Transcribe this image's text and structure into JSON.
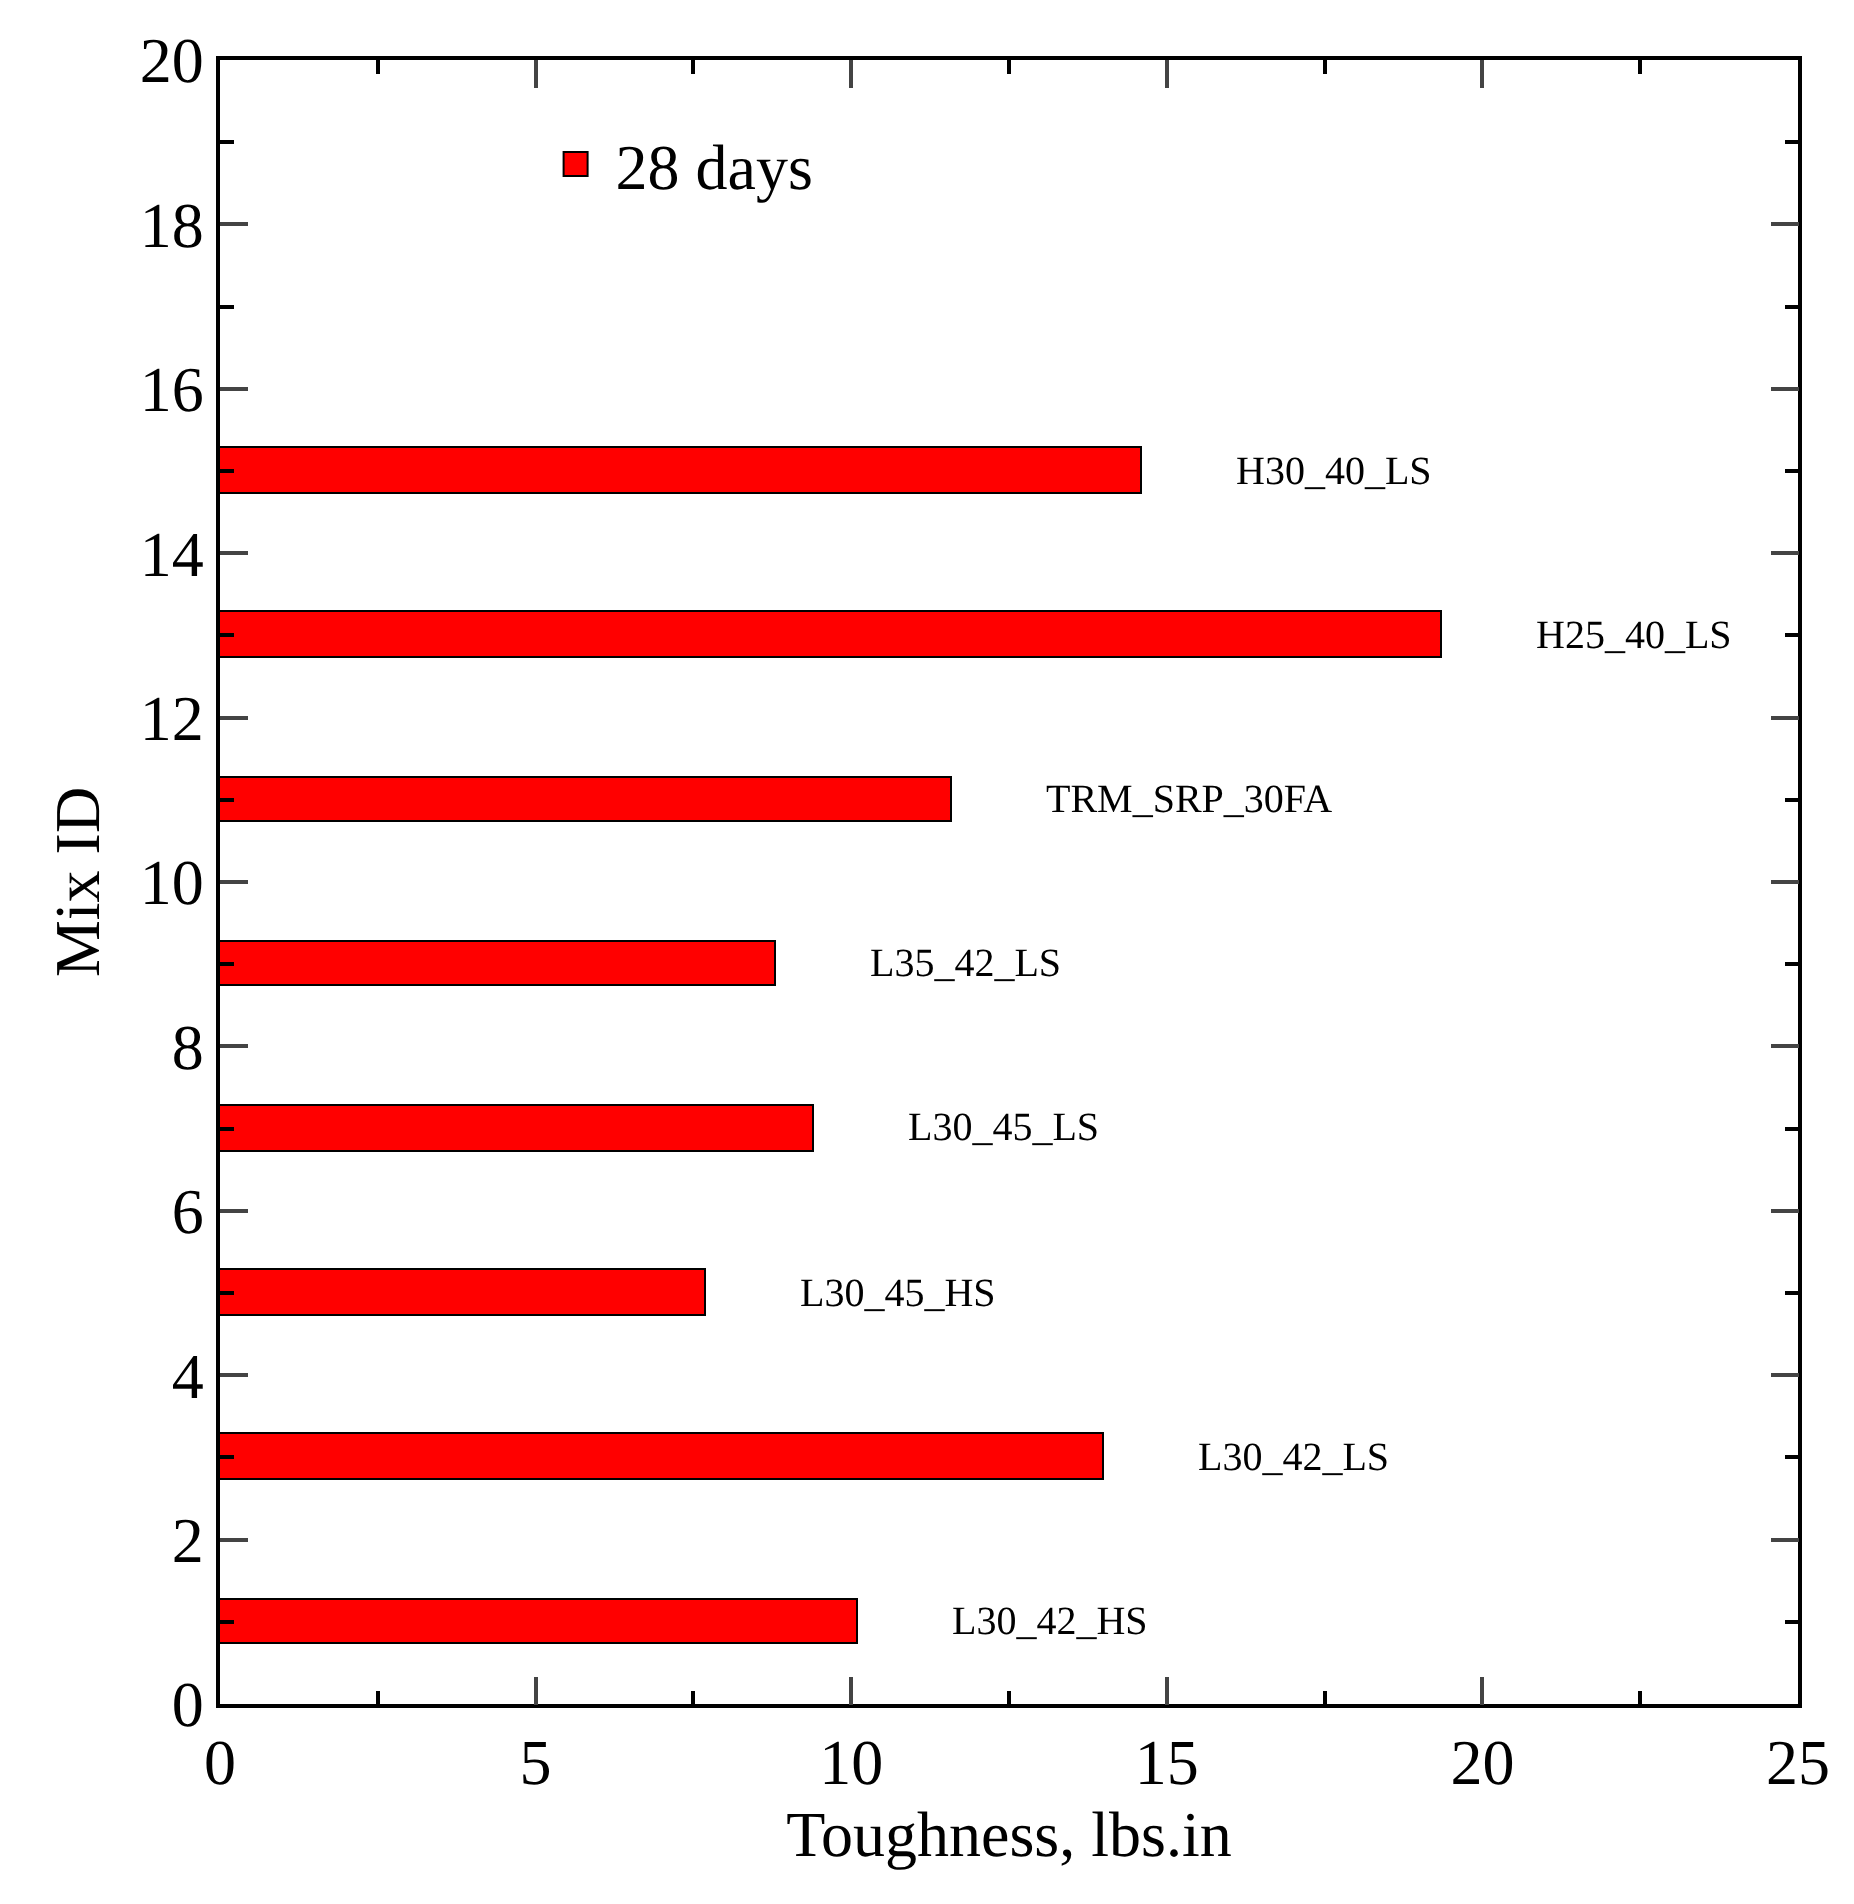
{
  "chart_data": {
    "type": "bar",
    "orientation": "horizontal",
    "xlabel": "Toughness, lbs.in",
    "ylabel": "Mix ID",
    "x": [
      1,
      3,
      5,
      7,
      9,
      11,
      13,
      15
    ],
    "series": [
      {
        "name": "28 days",
        "color": "#ff0000",
        "values": [
          10.1,
          14.0,
          7.7,
          9.4,
          8.8,
          11.6,
          19.35,
          14.6
        ]
      }
    ],
    "xlim": [
      0,
      25
    ],
    "xticks": [
      0,
      5,
      10,
      15,
      20,
      25
    ],
    "ylim": [
      0,
      20
    ],
    "yticks": [
      0,
      2,
      4,
      6,
      8,
      10,
      12,
      14,
      16,
      18,
      20
    ],
    "grid": false,
    "legend": "top left",
    "annotations": [
      {
        "text": "L30_42_HS",
        "x": 10.1,
        "y": 1
      },
      {
        "text": "L30_42_LS",
        "x": 14.0,
        "y": 3
      },
      {
        "text": "L30_45_HS",
        "x": 7.7,
        "y": 5
      },
      {
        "text": "L30_45_LS",
        "x": 9.4,
        "y": 7
      },
      {
        "text": "L35_42_LS",
        "x": 8.8,
        "y": 9
      },
      {
        "text": "TRM_SRP_30FA",
        "x": 11.6,
        "y": 11
      },
      {
        "text": "H25_40_LS",
        "x": 19.35,
        "y": 13
      },
      {
        "text": "H30_40_LS",
        "x": 14.6,
        "y": 15
      }
    ]
  }
}
